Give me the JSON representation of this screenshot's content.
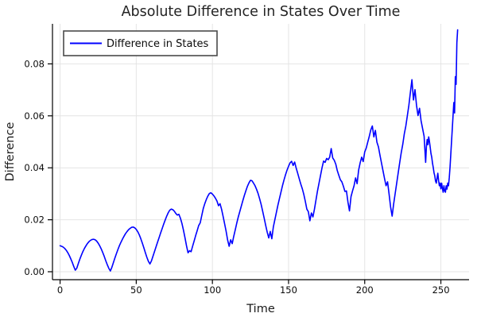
{
  "chart_data": {
    "type": "line",
    "title": "Absolute Difference in States Over Time",
    "xlabel": "Time",
    "ylabel": "Difference",
    "legend": [
      "Difference in States"
    ],
    "legend_position": "top-left",
    "grid": true,
    "line_color": "#0000ff",
    "grid_color": "#e4e4e4",
    "axis_color": "#000000",
    "xlim": [
      -5,
      268.5
    ],
    "ylim": [
      -0.00306,
      0.09541
    ],
    "xticks": [
      0,
      50,
      100,
      150,
      200,
      250
    ],
    "xtick_labels": [
      "0",
      "50",
      "100",
      "150",
      "200",
      "250"
    ],
    "yticks": [
      0.0,
      0.02,
      0.04,
      0.06,
      0.08
    ],
    "ytick_labels": [
      "0.00",
      "0.02",
      "0.04",
      "0.06",
      "0.08"
    ],
    "series_name": "Difference in States",
    "x": [
      0,
      1,
      2,
      3,
      4,
      5,
      6,
      7,
      8,
      9,
      10,
      11,
      12,
      13,
      14,
      15,
      16,
      17,
      18,
      19,
      20,
      21,
      22,
      23,
      24,
      25,
      26,
      27,
      28,
      29,
      30,
      31,
      32,
      33,
      34,
      35,
      36,
      37,
      38,
      39,
      40,
      41,
      42,
      43,
      44,
      45,
      46,
      47,
      48,
      49,
      50,
      51,
      52,
      53,
      54,
      55,
      56,
      57,
      58,
      59,
      60,
      61,
      62,
      63,
      64,
      65,
      66,
      67,
      68,
      69,
      70,
      71,
      72,
      73,
      74,
      75,
      76,
      77,
      78,
      79,
      80,
      81,
      82,
      83,
      84,
      85,
      86,
      87,
      88,
      89,
      90,
      91,
      92,
      93,
      94,
      95,
      96,
      97,
      98,
      99,
      100,
      101,
      102,
      103,
      104,
      105,
      106,
      107,
      108,
      109,
      110,
      111,
      112,
      113,
      114,
      115,
      116,
      117,
      118,
      119,
      120,
      121,
      122,
      123,
      124,
      125,
      126,
      127,
      128,
      129,
      130,
      131,
      132,
      133,
      134,
      135,
      136,
      137,
      138,
      139,
      140,
      141,
      142,
      143,
      144,
      145,
      146,
      147,
      148,
      149,
      150,
      151,
      152,
      153,
      154,
      155,
      156,
      157,
      158,
      159,
      160,
      161,
      162,
      163,
      164,
      165,
      166,
      167,
      168,
      169,
      170,
      171,
      172,
      173,
      174,
      175,
      176,
      177,
      178,
      179,
      180,
      181,
      182,
      183,
      184,
      185,
      186,
      187,
      188,
      189,
      190,
      191,
      192,
      193,
      194,
      195,
      196,
      197,
      198,
      199,
      200,
      201,
      202,
      203,
      204,
      205,
      206,
      207,
      208,
      209,
      210,
      211,
      212,
      213,
      214,
      215,
      216,
      217,
      218,
      219,
      220,
      221,
      222,
      223,
      224,
      225,
      226,
      227,
      228,
      229,
      230,
      231,
      232,
      233,
      234,
      235,
      236,
      237,
      238,
      239,
      240,
      240.5,
      241,
      241.5,
      242,
      242.5,
      243,
      243.5,
      244,
      244.5,
      245,
      245.5,
      246,
      246.5,
      247,
      247.5,
      248,
      248.5,
      249,
      249.5,
      250,
      250.5,
      251,
      251.5,
      252,
      252.5,
      253,
      253.5,
      254,
      254.5,
      255,
      255.5,
      256,
      256.5,
      257,
      257.5,
      258,
      258.5,
      259,
      259.5,
      260,
      260.5,
      261
    ],
    "y": [
      0.01,
      0.0098,
      0.0095,
      0.009,
      0.0083,
      0.0074,
      0.0063,
      0.005,
      0.0036,
      0.002,
      0.0006,
      0.0014,
      0.0032,
      0.0049,
      0.0064,
      0.0078,
      0.009,
      0.01,
      0.0109,
      0.0116,
      0.0121,
      0.0124,
      0.0125,
      0.0123,
      0.0118,
      0.011,
      0.01,
      0.0088,
      0.0074,
      0.0059,
      0.0042,
      0.0027,
      0.0013,
      0.0003,
      0.0017,
      0.0035,
      0.0053,
      0.007,
      0.0086,
      0.0101,
      0.0114,
      0.0126,
      0.0137,
      0.0147,
      0.0155,
      0.0162,
      0.0167,
      0.0171,
      0.0172,
      0.0169,
      0.0163,
      0.0154,
      0.0142,
      0.0127,
      0.011,
      0.0092,
      0.0073,
      0.0055,
      0.004,
      0.003,
      0.0042,
      0.006,
      0.0078,
      0.0096,
      0.0114,
      0.0131,
      0.0149,
      0.0166,
      0.0183,
      0.0199,
      0.0214,
      0.0227,
      0.0237,
      0.0241,
      0.0239,
      0.0233,
      0.0224,
      0.0218,
      0.0221,
      0.0206,
      0.0186,
      0.016,
      0.0131,
      0.01,
      0.0073,
      0.0081,
      0.0077,
      0.0098,
      0.0118,
      0.0139,
      0.0158,
      0.0178,
      0.0188,
      0.0216,
      0.0243,
      0.0262,
      0.0278,
      0.0291,
      0.0301,
      0.0304,
      0.0299,
      0.0292,
      0.0283,
      0.0272,
      0.0254,
      0.0262,
      0.0241,
      0.0214,
      0.0185,
      0.0156,
      0.0122,
      0.0098,
      0.0123,
      0.0108,
      0.0136,
      0.0161,
      0.0187,
      0.0211,
      0.0232,
      0.0253,
      0.0274,
      0.0294,
      0.0312,
      0.0329,
      0.0342,
      0.0352,
      0.035,
      0.0341,
      0.0331,
      0.0317,
      0.0301,
      0.0281,
      0.0259,
      0.0233,
      0.0206,
      0.0178,
      0.0152,
      0.013,
      0.0155,
      0.0127,
      0.0172,
      0.02,
      0.0228,
      0.0256,
      0.0281,
      0.0306,
      0.0331,
      0.0353,
      0.0373,
      0.0391,
      0.0406,
      0.0419,
      0.0425,
      0.0409,
      0.0422,
      0.0399,
      0.0379,
      0.0358,
      0.0338,
      0.032,
      0.0298,
      0.0271,
      0.0241,
      0.0231,
      0.0196,
      0.0226,
      0.0211,
      0.0241,
      0.0276,
      0.0311,
      0.0341,
      0.0371,
      0.0401,
      0.0426,
      0.0421,
      0.0436,
      0.0431,
      0.0441,
      0.0474,
      0.0438,
      0.0429,
      0.0414,
      0.0389,
      0.0371,
      0.0354,
      0.0346,
      0.0329,
      0.0309,
      0.0311,
      0.0268,
      0.0234,
      0.0289,
      0.0311,
      0.0331,
      0.0361,
      0.0339,
      0.0391,
      0.0419,
      0.0441,
      0.0424,
      0.0461,
      0.0476,
      0.0499,
      0.0521,
      0.0546,
      0.0561,
      0.0519,
      0.0544,
      0.0499,
      0.0481,
      0.0449,
      0.0419,
      0.0389,
      0.0359,
      0.0331,
      0.0346,
      0.0299,
      0.0249,
      0.0214,
      0.0261,
      0.0301,
      0.0341,
      0.0381,
      0.0421,
      0.0459,
      0.0491,
      0.0531,
      0.0561,
      0.0601,
      0.0641,
      0.0691,
      0.0739,
      0.0661,
      0.0701,
      0.0641,
      0.0601,
      0.0629,
      0.0581,
      0.0551,
      0.0521,
      0.0421,
      0.0481,
      0.0509,
      0.0489,
      0.0519,
      0.0501,
      0.0479,
      0.0455,
      0.0441,
      0.0418,
      0.0401,
      0.0381,
      0.0369,
      0.0349,
      0.0341,
      0.0361,
      0.0379,
      0.0351,
      0.0331,
      0.0341,
      0.0319,
      0.0341,
      0.0321,
      0.0306,
      0.0331,
      0.0311,
      0.0306,
      0.0331,
      0.0318,
      0.0341,
      0.0331,
      0.0361,
      0.0401,
      0.0451,
      0.0501,
      0.0551,
      0.0601,
      0.0651,
      0.0611,
      0.0751,
      0.0721,
      0.0881,
      0.0931
    ]
  }
}
